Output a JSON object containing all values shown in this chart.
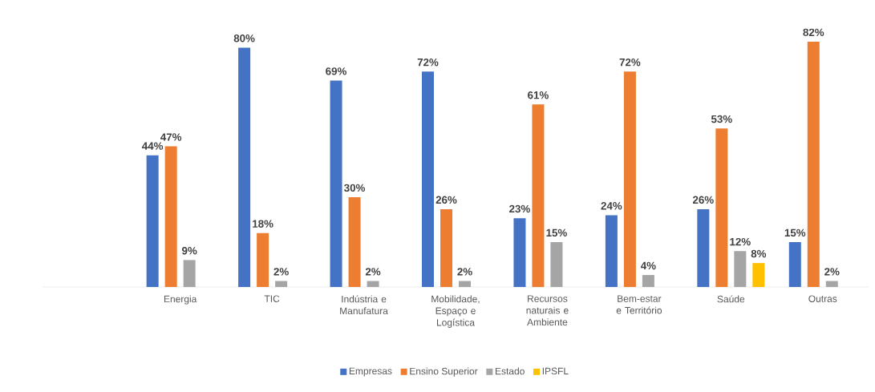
{
  "chart_data": {
    "type": "bar",
    "categories": [
      null,
      "Energia",
      "TIC",
      "Indústria e Manufatura",
      "Mobilidade, Espaço e Logística",
      "Recursos naturais e Ambiente",
      "Bem-estar e Território",
      "Saúde",
      "Outras"
    ],
    "series": [
      {
        "name": "Empresas",
        "color": "#4472c4",
        "values": [
          null,
          44,
          80,
          69,
          72,
          23,
          24,
          26,
          15
        ],
        "value_labels": [
          null,
          "44%",
          "80%",
          "69%",
          "72%",
          "23%",
          "24%",
          "26%",
          "15%"
        ]
      },
      {
        "name": "Ensino Superior",
        "color": "#ed7d31",
        "values": [
          null,
          47,
          18,
          30,
          26,
          61,
          72,
          53,
          82
        ],
        "value_labels": [
          null,
          "47%",
          "18%",
          "30%",
          "26%",
          "61%",
          "72%",
          "53%",
          "82%"
        ]
      },
      {
        "name": "Estado",
        "color": "#a5a5a5",
        "values": [
          null,
          9,
          2,
          2,
          2,
          15,
          4,
          12,
          2
        ],
        "value_labels": [
          null,
          "9%",
          "2%",
          "2%",
          "2%",
          "15%",
          "4%",
          "12%",
          "2%"
        ]
      },
      {
        "name": "IPSFL",
        "color": "#ffc000",
        "values": [
          null,
          null,
          null,
          null,
          null,
          null,
          null,
          8,
          null
        ],
        "value_labels": [
          null,
          null,
          null,
          null,
          null,
          null,
          null,
          "8%",
          null
        ]
      }
    ],
    "legend": "bottom"
  }
}
